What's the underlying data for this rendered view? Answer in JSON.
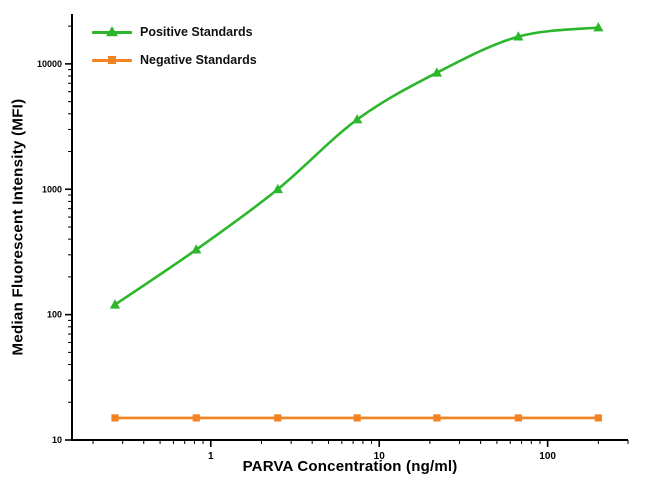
{
  "chart_data": {
    "type": "line",
    "title": "",
    "xlabel": "PARVA Concentration (ng/ml)",
    "ylabel": "Median  Fluorescent Intensity  (MFI)",
    "xscale": "log",
    "yscale": "log",
    "xlim": [
      0.15,
      300
    ],
    "ylim": [
      10,
      25000
    ],
    "x_ticks": [
      1,
      10,
      100
    ],
    "x_tick_labels": [
      "1",
      "10",
      "100"
    ],
    "y_ticks": [
      10,
      100,
      1000,
      10000
    ],
    "y_tick_labels": [
      "10",
      "100",
      "1000",
      "10000"
    ],
    "grid": false,
    "legend_position": "top-left",
    "axis_color": "#000000",
    "series": [
      {
        "name": "Positive Standards",
        "color": "#2bb62b",
        "marker": "triangle",
        "smooth": true,
        "x": [
          0.27,
          0.82,
          2.5,
          7.4,
          22,
          67,
          200
        ],
        "y": [
          120,
          330,
          1000,
          3600,
          8500,
          16500,
          19500
        ]
      },
      {
        "name": "Negative Standards",
        "color": "#f58220",
        "marker": "square",
        "smooth": false,
        "x": [
          0.27,
          0.82,
          2.5,
          7.4,
          22,
          67,
          200
        ],
        "y": [
          15,
          15,
          15,
          15,
          15,
          15,
          15
        ]
      }
    ]
  }
}
